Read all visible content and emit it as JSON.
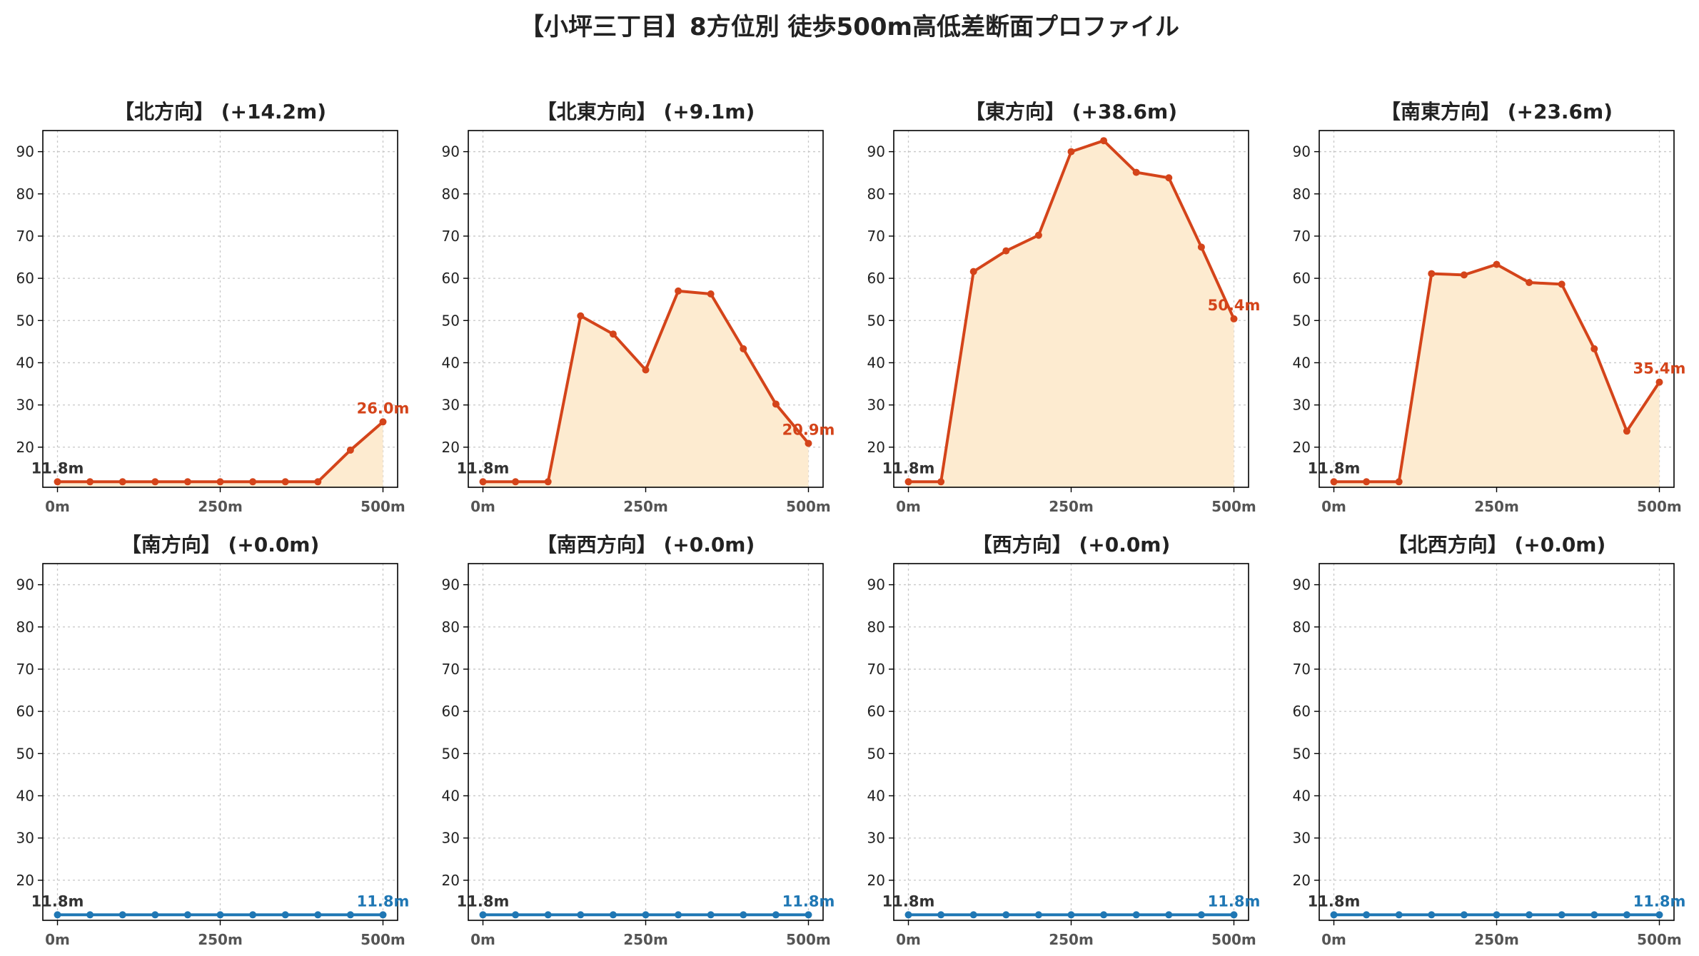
{
  "title": "【小坪三丁目】8方位別 徒歩500m高低差断面プロファイル",
  "colors": {
    "uphill_line": "#d4441a",
    "uphill_fill": "#fdebd0",
    "flat_line": "#1f77b4",
    "start_label": "#333333",
    "grid": "#c8c8c8"
  },
  "chart_data": [
    {
      "type": "area",
      "title": "【北方向】 (+14.2m)",
      "x": [
        0,
        50,
        100,
        150,
        200,
        250,
        300,
        350,
        400,
        450,
        500
      ],
      "y": [
        11.8,
        11.8,
        11.8,
        11.8,
        11.8,
        11.8,
        11.8,
        11.8,
        11.8,
        19.3,
        26.0
      ],
      "start_label": "11.8m",
      "end_label": "26.0m",
      "xticks": [
        "0m",
        "250m",
        "500m"
      ],
      "yticks": [
        20,
        30,
        40,
        50,
        60,
        70,
        80,
        90
      ],
      "ylim": [
        10.5,
        95
      ],
      "grid": true
    },
    {
      "type": "area",
      "title": "【北東方向】 (+9.1m)",
      "x": [
        0,
        50,
        100,
        150,
        200,
        250,
        300,
        350,
        400,
        450,
        500
      ],
      "y": [
        11.8,
        11.8,
        11.8,
        51.1,
        46.8,
        38.3,
        57.0,
        56.3,
        43.3,
        30.2,
        20.9
      ],
      "start_label": "11.8m",
      "end_label": "20.9m",
      "xticks": [
        "0m",
        "250m",
        "500m"
      ],
      "yticks": [
        20,
        30,
        40,
        50,
        60,
        70,
        80,
        90
      ],
      "ylim": [
        10.5,
        95
      ],
      "grid": true
    },
    {
      "type": "area",
      "title": "【東方向】 (+38.6m)",
      "x": [
        0,
        50,
        100,
        150,
        200,
        250,
        300,
        350,
        400,
        450,
        500
      ],
      "y": [
        11.8,
        11.8,
        61.6,
        66.5,
        70.2,
        90.0,
        92.6,
        85.1,
        83.8,
        67.4,
        50.4
      ],
      "start_label": "11.8m",
      "end_label": "50.4m",
      "xticks": [
        "0m",
        "250m",
        "500m"
      ],
      "yticks": [
        20,
        30,
        40,
        50,
        60,
        70,
        80,
        90
      ],
      "ylim": [
        10.5,
        95
      ],
      "grid": true
    },
    {
      "type": "area",
      "title": "【南東方向】 (+23.6m)",
      "x": [
        0,
        50,
        100,
        150,
        200,
        250,
        300,
        350,
        400,
        450,
        500
      ],
      "y": [
        11.8,
        11.8,
        11.8,
        61.1,
        60.8,
        63.3,
        59.0,
        58.6,
        43.3,
        23.8,
        35.4
      ],
      "start_label": "11.8m",
      "end_label": "35.4m",
      "xticks": [
        "0m",
        "250m",
        "500m"
      ],
      "yticks": [
        20,
        30,
        40,
        50,
        60,
        70,
        80,
        90
      ],
      "ylim": [
        10.5,
        95
      ],
      "grid": true
    },
    {
      "type": "line",
      "title": "【南方向】 (+0.0m)",
      "x": [
        0,
        50,
        100,
        150,
        200,
        250,
        300,
        350,
        400,
        450,
        500
      ],
      "y": [
        11.8,
        11.8,
        11.8,
        11.8,
        11.8,
        11.8,
        11.8,
        11.8,
        11.8,
        11.8,
        11.8
      ],
      "start_label": "11.8m",
      "end_label": "11.8m",
      "xticks": [
        "0m",
        "250m",
        "500m"
      ],
      "yticks": [
        20,
        30,
        40,
        50,
        60,
        70,
        80,
        90
      ],
      "ylim": [
        10.5,
        95
      ],
      "grid": true
    },
    {
      "type": "line",
      "title": "【南西方向】 (+0.0m)",
      "x": [
        0,
        50,
        100,
        150,
        200,
        250,
        300,
        350,
        400,
        450,
        500
      ],
      "y": [
        11.8,
        11.8,
        11.8,
        11.8,
        11.8,
        11.8,
        11.8,
        11.8,
        11.8,
        11.8,
        11.8
      ],
      "start_label": "11.8m",
      "end_label": "11.8m",
      "xticks": [
        "0m",
        "250m",
        "500m"
      ],
      "yticks": [
        20,
        30,
        40,
        50,
        60,
        70,
        80,
        90
      ],
      "ylim": [
        10.5,
        95
      ],
      "grid": true
    },
    {
      "type": "line",
      "title": "【西方向】 (+0.0m)",
      "x": [
        0,
        50,
        100,
        150,
        200,
        250,
        300,
        350,
        400,
        450,
        500
      ],
      "y": [
        11.8,
        11.8,
        11.8,
        11.8,
        11.8,
        11.8,
        11.8,
        11.8,
        11.8,
        11.8,
        11.8
      ],
      "start_label": "11.8m",
      "end_label": "11.8m",
      "xticks": [
        "0m",
        "250m",
        "500m"
      ],
      "yticks": [
        20,
        30,
        40,
        50,
        60,
        70,
        80,
        90
      ],
      "ylim": [
        10.5,
        95
      ],
      "grid": true
    },
    {
      "type": "line",
      "title": "【北西方向】 (+0.0m)",
      "x": [
        0,
        50,
        100,
        150,
        200,
        250,
        300,
        350,
        400,
        450,
        500
      ],
      "y": [
        11.8,
        11.8,
        11.8,
        11.8,
        11.8,
        11.8,
        11.8,
        11.8,
        11.8,
        11.8,
        11.8
      ],
      "start_label": "11.8m",
      "end_label": "11.8m",
      "xticks": [
        "0m",
        "250m",
        "500m"
      ],
      "yticks": [
        20,
        30,
        40,
        50,
        60,
        70,
        80,
        90
      ],
      "ylim": [
        10.5,
        95
      ],
      "grid": true
    }
  ]
}
